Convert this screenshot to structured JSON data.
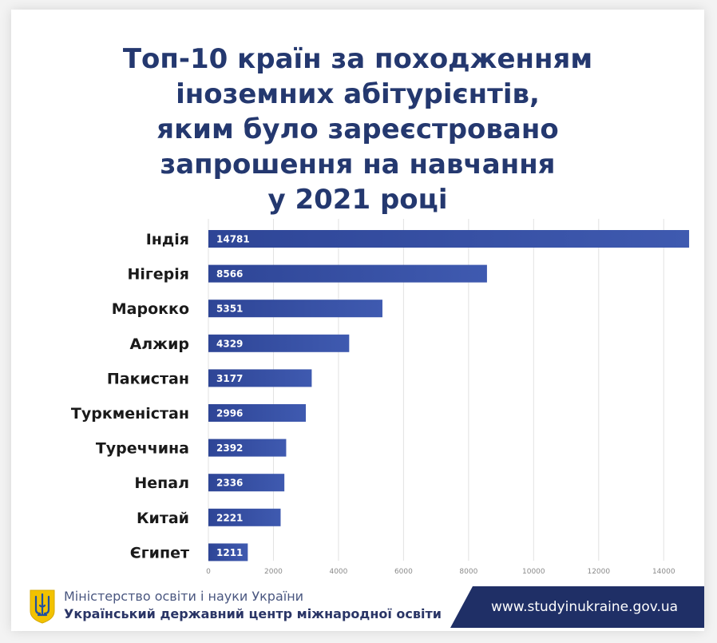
{
  "chart_data": {
    "type": "bar",
    "orientation": "horizontal",
    "title_lines": [
      "Топ-10 країн за походженням",
      "іноземних абітурієнтів,",
      "яким було зареєстровано",
      "запрошення на навчання",
      "у 2021 році"
    ],
    "categories": [
      "Індія",
      "Нігерія",
      "Марокко",
      "Алжир",
      "Пакистан",
      "Туркменістан",
      "Туреччина",
      "Непал",
      "Китай",
      "Єгипет"
    ],
    "values": [
      14781,
      8566,
      5351,
      4329,
      3177,
      2996,
      2392,
      2336,
      2221,
      1211
    ],
    "xlim": [
      0,
      15000
    ],
    "xticks": [
      0,
      2000,
      4000,
      6000,
      8000,
      10000,
      12000,
      14000
    ],
    "grid": true,
    "bar_color": "#2e4596",
    "bar_color_end": "#3f5ab0",
    "title_color": "#24386f"
  },
  "footer": {
    "org_line1": "Міністерство освіти і науки України",
    "org_line2": "Український державний центр міжнародної освіти",
    "url": "www.studyinukraine.gov.ua",
    "emblem_icon": "tryzub-icon"
  }
}
